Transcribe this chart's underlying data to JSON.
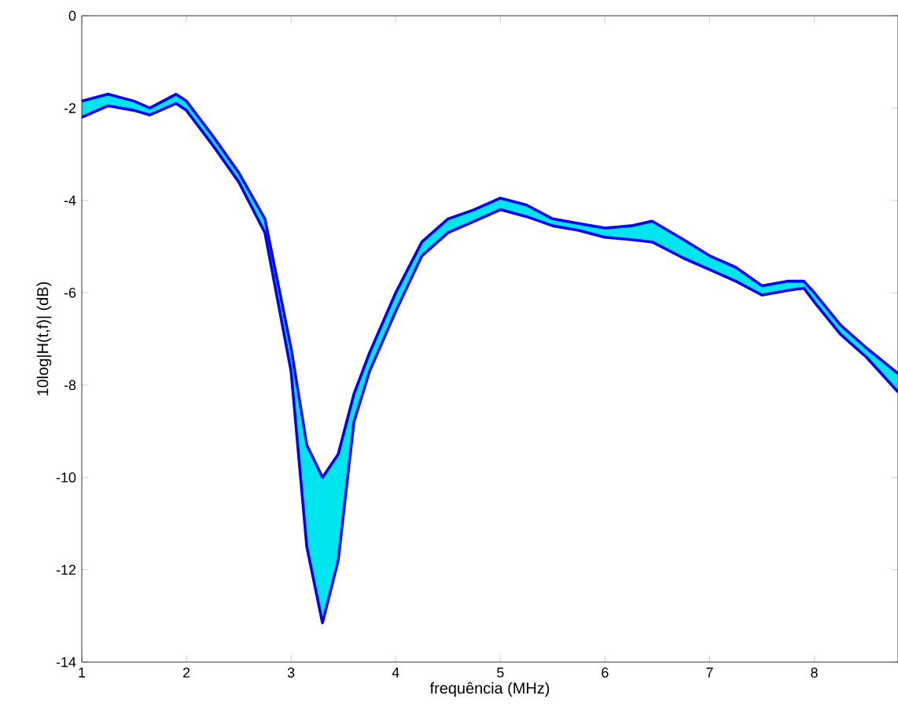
{
  "chart_data": {
    "type": "line",
    "xlabel": "frequência (MHz)",
    "ylabel": "10log|H(t,f)| (dB)",
    "xlim": [
      1,
      8.8
    ],
    "ylim": [
      -14,
      0
    ],
    "xticks": [
      1,
      2,
      3,
      4,
      5,
      6,
      7,
      8
    ],
    "yticks": [
      -14,
      -12,
      -10,
      -8,
      -6,
      -4,
      -2,
      0
    ],
    "grid": false,
    "x": [
      1,
      1.25,
      1.5,
      1.65,
      1.9,
      2.0,
      2.25,
      2.5,
      2.75,
      3.0,
      3.15,
      3.3,
      3.45,
      3.6,
      3.75,
      4.0,
      4.25,
      4.5,
      4.75,
      5.0,
      5.25,
      5.5,
      5.75,
      6.0,
      6.25,
      6.45,
      6.75,
      7.0,
      7.25,
      7.5,
      7.75,
      7.9,
      8.0,
      8.25,
      8.5,
      8.8
    ],
    "series": [
      {
        "color": "#0000ff",
        "values": [
          -1.85,
          -1.7,
          -1.85,
          -2.0,
          -1.7,
          -1.85,
          -2.6,
          -3.4,
          -4.4,
          -7.2,
          -9.3,
          -10.0,
          -9.5,
          -8.2,
          -7.3,
          -6.0,
          -4.9,
          -4.4,
          -4.2,
          -3.95,
          -4.1,
          -4.4,
          -4.5,
          -4.6,
          -4.55,
          -4.45,
          -4.85,
          -5.2,
          -5.45,
          -5.85,
          -5.75,
          -5.75,
          -6.0,
          -6.7,
          -7.2,
          -7.75
        ],
        "upper": [
          -1.85,
          -1.7,
          -1.85,
          -2.0,
          -1.7,
          -1.85,
          -2.6,
          -3.4,
          -4.4,
          -7.2,
          -9.3,
          -10.0,
          -9.5,
          -8.2,
          -7.3,
          -6.0,
          -4.9,
          -4.4,
          -4.2,
          -3.95,
          -4.1,
          -4.4,
          -4.5,
          -4.6,
          -4.55,
          -4.45,
          -4.85,
          -5.2,
          -5.45,
          -5.85,
          -5.75,
          -5.75,
          -6.0,
          -6.7,
          -7.2,
          -7.75
        ],
        "lower": [
          -2.2,
          -1.95,
          -2.05,
          -2.15,
          -1.9,
          -2.05,
          -2.8,
          -3.6,
          -4.7,
          -7.7,
          -11.5,
          -13.15,
          -11.8,
          -8.8,
          -7.7,
          -6.4,
          -5.2,
          -4.7,
          -4.45,
          -4.2,
          -4.35,
          -4.55,
          -4.65,
          -4.8,
          -4.85,
          -4.9,
          -5.25,
          -5.5,
          -5.75,
          -6.05,
          -5.95,
          -5.9,
          -6.2,
          -6.9,
          -7.4,
          -8.15
        ]
      },
      {
        "color": "#0000ff",
        "values": [
          -2.2,
          -1.95,
          -2.05,
          -2.15,
          -1.9,
          -2.05,
          -2.8,
          -3.6,
          -4.7,
          -7.7,
          -11.5,
          -13.15,
          -11.8,
          -8.8,
          -7.7,
          -6.4,
          -5.2,
          -4.7,
          -4.45,
          -4.2,
          -4.35,
          -4.55,
          -4.65,
          -4.8,
          -4.85,
          -4.9,
          -5.25,
          -5.5,
          -5.75,
          -6.05,
          -5.95,
          -5.9,
          -6.2,
          -6.9,
          -7.4,
          -8.15
        ]
      }
    ]
  }
}
